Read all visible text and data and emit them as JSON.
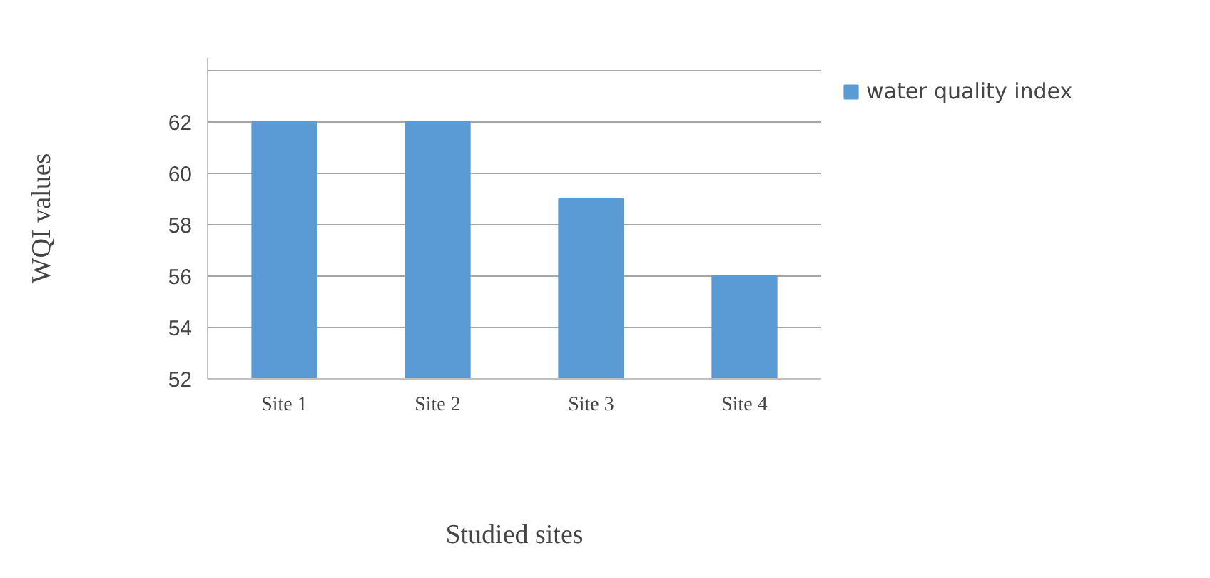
{
  "chart_data": {
    "type": "bar",
    "xlabel": "Studied sites",
    "ylabel": "WQI values",
    "categories": [
      "Site 1",
      "Site 2",
      "Site 3",
      "Site 4"
    ],
    "series": [
      {
        "name": "water quality index",
        "color": "#5b9bd5",
        "values": [
          62,
          62,
          59,
          56
        ]
      }
    ],
    "ylim": [
      52,
      64.5
    ],
    "yticks": [
      52,
      54,
      56,
      58,
      60,
      62,
      {
        "value": 64,
        "label": null
      }
    ],
    "grid": "y",
    "legend": "top right"
  }
}
